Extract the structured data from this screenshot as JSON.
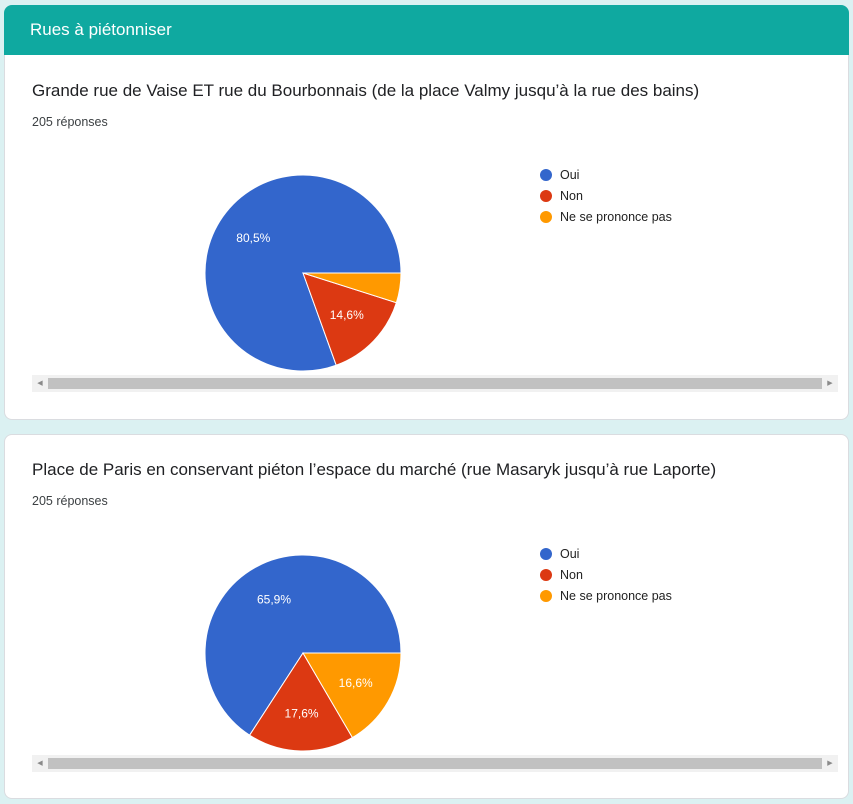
{
  "section": {
    "title": "Rues à piétonniser"
  },
  "colors": {
    "oui": "#3366cc",
    "non": "#dc3912",
    "nsp": "#ff9900"
  },
  "charts": [
    {
      "title": "Grande rue de Vaise ET rue du Bourbonnais (de la place Valmy jusqu’à la rue des bains)",
      "responses": "205 réponses"
    },
    {
      "title": "Place de Paris en conservant piéton l’espace du marché (rue Masaryk jusqu’à rue Laporte)",
      "responses": "205 réponses"
    }
  ],
  "chart_data": [
    {
      "type": "pie",
      "title": "Grande rue de Vaise ET rue du Bourbonnais (de la place Valmy jusqu’à la rue des bains)",
      "labels": [
        "Oui",
        "Non",
        "Ne se prononce pas"
      ],
      "values": [
        80.5,
        14.6,
        4.9
      ],
      "data_labels": [
        "80,5%",
        "14,6%",
        ""
      ],
      "colors": [
        "#3366cc",
        "#dc3912",
        "#ff9900"
      ],
      "legend": "right"
    },
    {
      "type": "pie",
      "title": "Place de Paris en conservant piéton l’espace du marché (rue Masaryk jusqu’à rue Laporte)",
      "labels": [
        "Oui",
        "Non",
        "Ne se prononce pas"
      ],
      "values": [
        65.9,
        17.6,
        16.6
      ],
      "data_labels": [
        "65,9%",
        "17,6%",
        "16,6%"
      ],
      "colors": [
        "#3366cc",
        "#dc3912",
        "#ff9900"
      ],
      "legend": "right"
    }
  ]
}
